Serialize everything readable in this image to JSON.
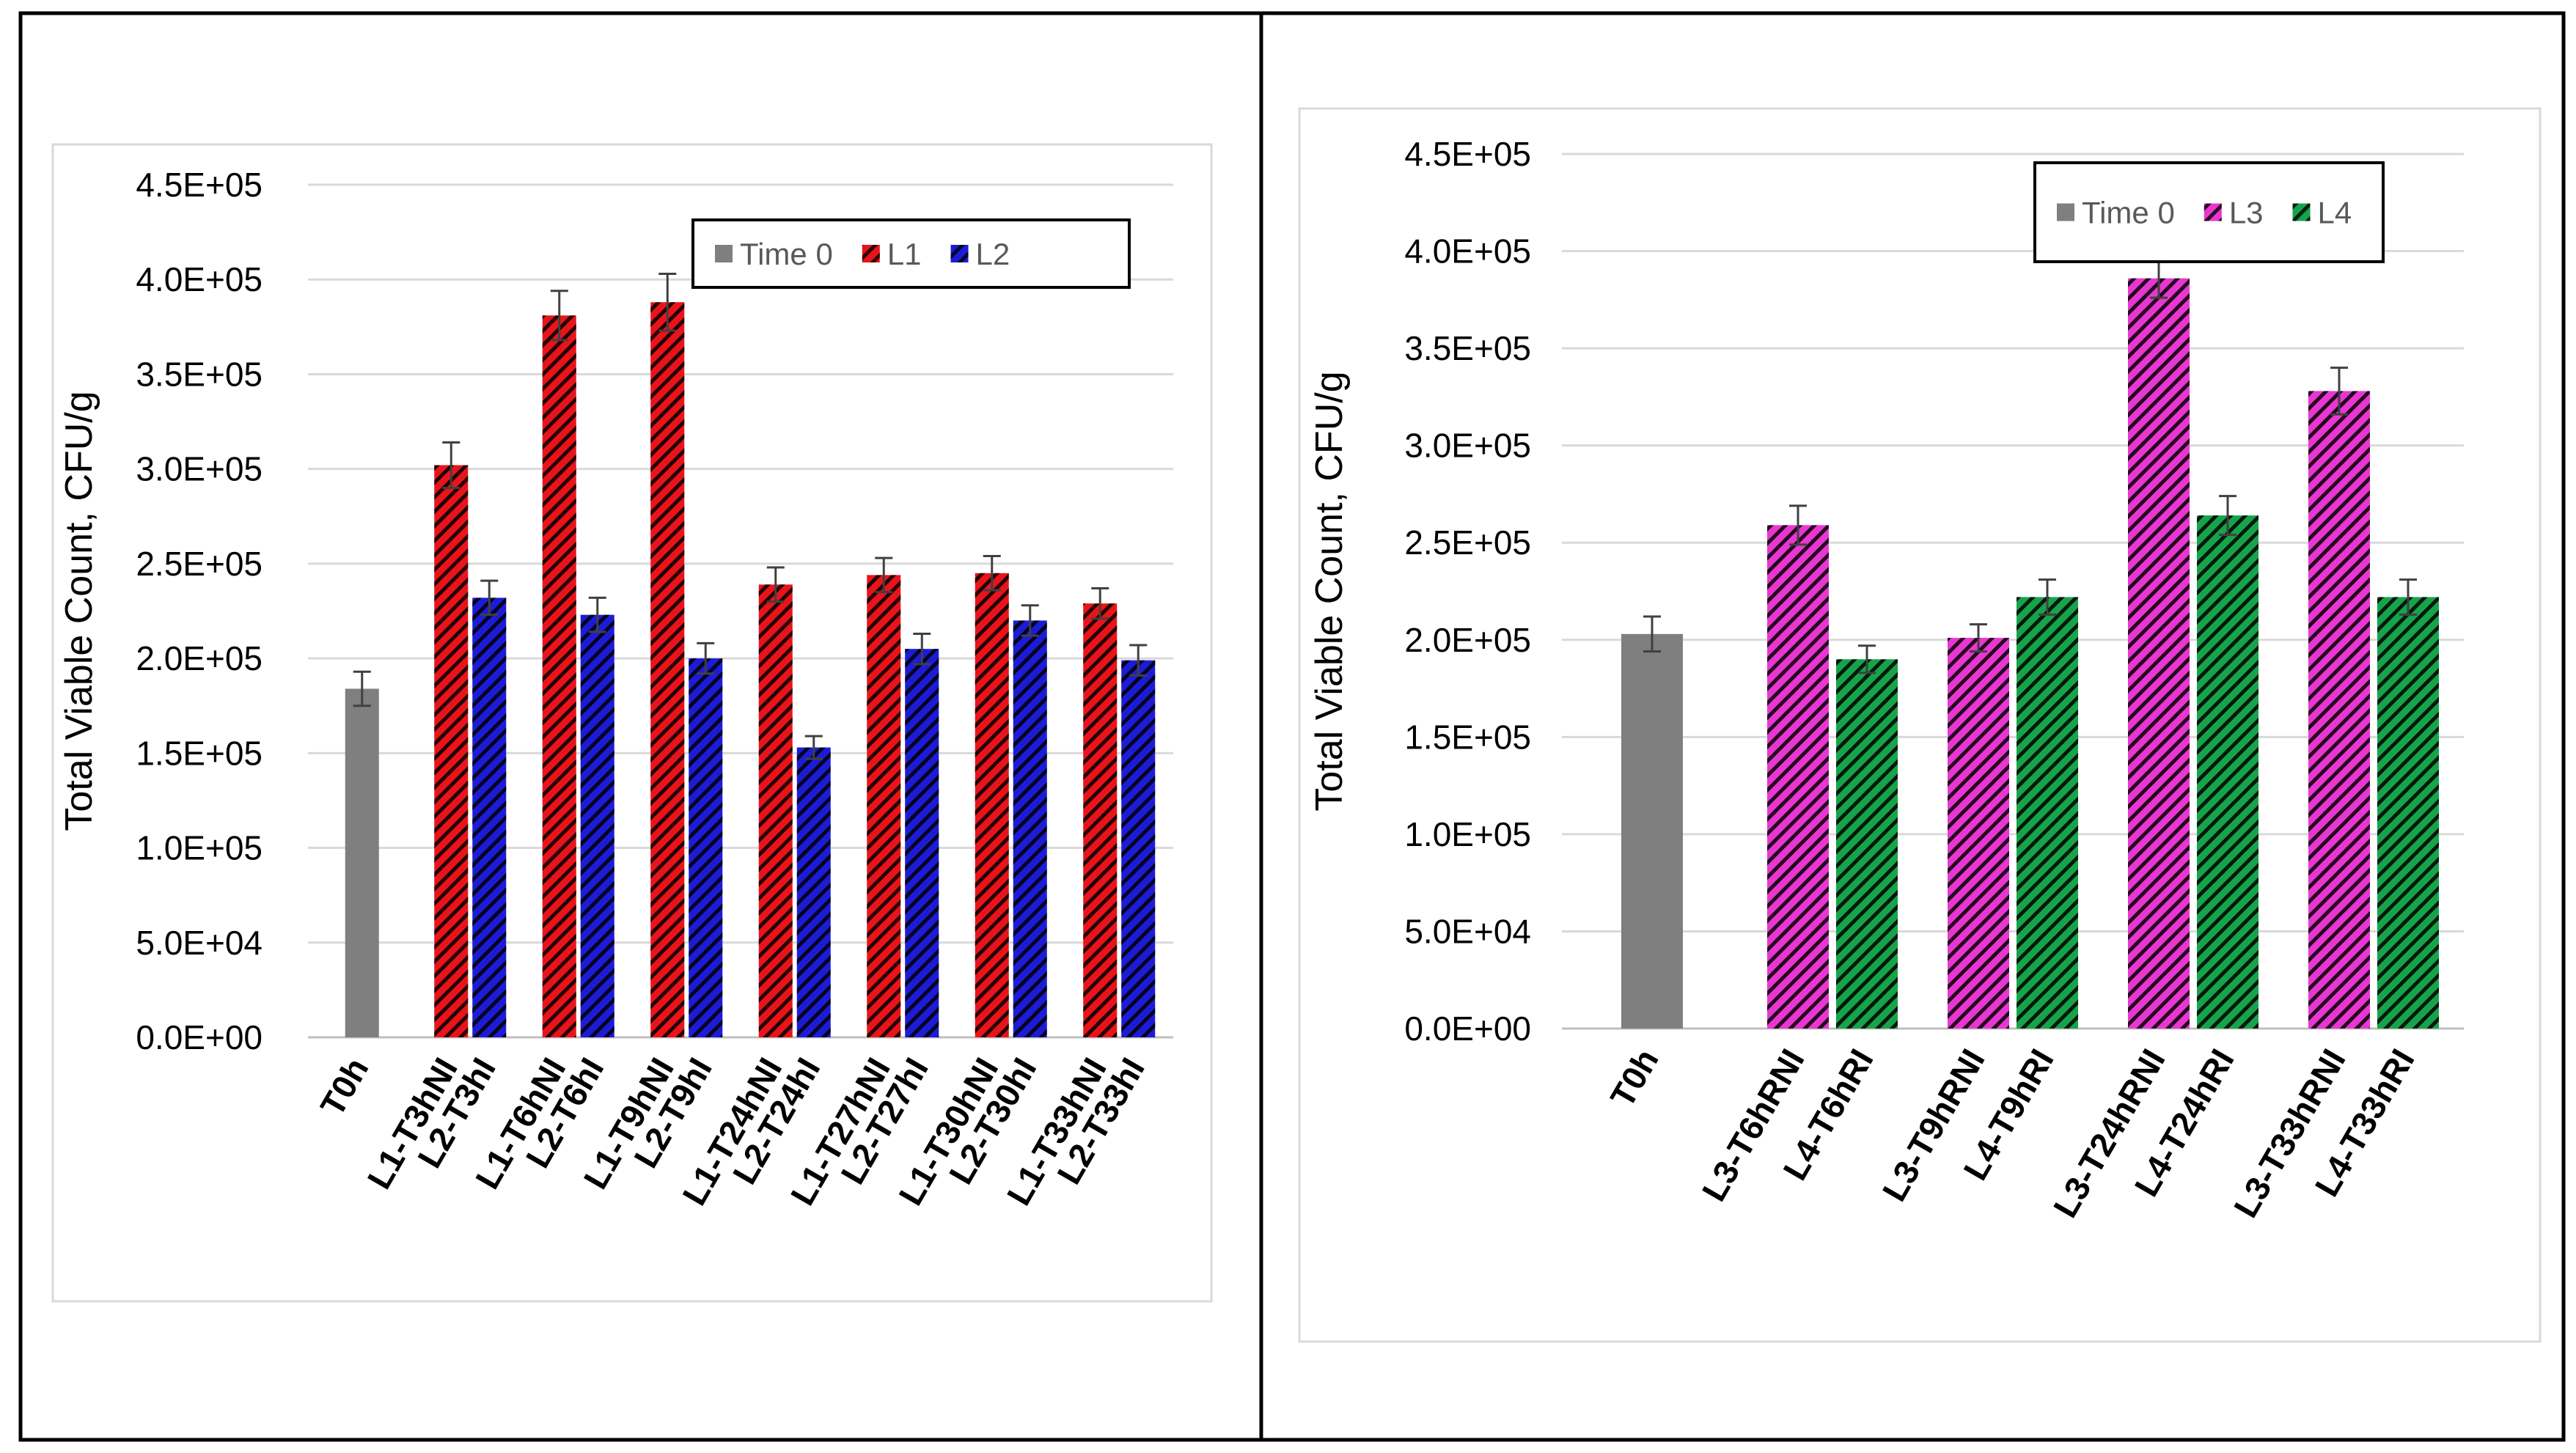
{
  "chart_data": [
    {
      "type": "bar",
      "ylabel": "Total Viable Count, CFU/g",
      "ylim": [
        0,
        450000
      ],
      "ytick_step": 50000,
      "yticks": [
        "0.0E+00",
        "5.0E+04",
        "1.0E+05",
        "1.5E+05",
        "2.0E+05",
        "2.5E+05",
        "3.0E+05",
        "3.5E+05",
        "4.0E+05",
        "4.5E+05"
      ],
      "grid": true,
      "legend_position": "top-right",
      "groups": [
        {
          "bars": [
            {
              "label": "T0h",
              "series": "Time 0",
              "value": 184000,
              "error": 9000
            }
          ]
        },
        {
          "bars": [
            {
              "label": "L1-T3hNI",
              "series": "L1",
              "value": 302000,
              "error": 12000
            },
            {
              "label": "L2-T3hI",
              "series": "L2",
              "value": 232000,
              "error": 9000
            }
          ]
        },
        {
          "bars": [
            {
              "label": "L1-T6hNI",
              "series": "L1",
              "value": 381000,
              "error": 13000
            },
            {
              "label": "L2-T6hI",
              "series": "L2",
              "value": 223000,
              "error": 9000
            }
          ]
        },
        {
          "bars": [
            {
              "label": "L1-T9hNI",
              "series": "L1",
              "value": 388000,
              "error": 15000
            },
            {
              "label": "L2-T9hI",
              "series": "L2",
              "value": 200000,
              "error": 8000
            }
          ]
        },
        {
          "bars": [
            {
              "label": "L1-T24hNI",
              "series": "L1",
              "value": 239000,
              "error": 9000
            },
            {
              "label": "L2-T24hI",
              "series": "L2",
              "value": 153000,
              "error": 6000
            }
          ]
        },
        {
          "bars": [
            {
              "label": "L1-T27hNI",
              "series": "L1",
              "value": 244000,
              "error": 9000
            },
            {
              "label": "L2-T27hI",
              "series": "L2",
              "value": 205000,
              "error": 8000
            }
          ]
        },
        {
          "bars": [
            {
              "label": "L1-T30hNI",
              "series": "L1",
              "value": 245000,
              "error": 9000
            },
            {
              "label": "L2-T30hI",
              "series": "L2",
              "value": 220000,
              "error": 8000
            }
          ]
        },
        {
          "bars": [
            {
              "label": "L1-T33hNI",
              "series": "L1",
              "value": 229000,
              "error": 8000
            },
            {
              "label": "L2-T33hI",
              "series": "L2",
              "value": 199000,
              "error": 8000
            }
          ]
        }
      ],
      "legend": [
        {
          "name": "Time 0",
          "color": "#7f7f7f",
          "pattern": "solid"
        },
        {
          "name": "L1",
          "color": "#e8141a",
          "pattern": "hatch"
        },
        {
          "name": "L2",
          "color": "#1c1cd6",
          "pattern": "hatch"
        }
      ]
    },
    {
      "type": "bar",
      "ylabel": "Total Viable Count, CFU/g",
      "ylim": [
        0,
        450000
      ],
      "ytick_step": 50000,
      "yticks": [
        "0.0E+00",
        "5.0E+04",
        "1.0E+05",
        "1.5E+05",
        "2.0E+05",
        "2.5E+05",
        "3.0E+05",
        "3.5E+05",
        "4.0E+05",
        "4.5E+05"
      ],
      "grid": true,
      "legend_position": "top-right",
      "groups": [
        {
          "bars": [
            {
              "label": "T0h",
              "series": "Time 0",
              "value": 203000,
              "error": 9000
            }
          ]
        },
        {
          "bars": [
            {
              "label": "L3-T6hRNI",
              "series": "L3",
              "value": 259000,
              "error": 10000
            },
            {
              "label": "L4-T6hRI",
              "series": "L4",
              "value": 190000,
              "error": 7000
            }
          ]
        },
        {
          "bars": [
            {
              "label": "L3-T9hRNI",
              "series": "L3",
              "value": 201000,
              "error": 7000
            },
            {
              "label": "L4-T9hRI",
              "series": "L4",
              "value": 222000,
              "error": 9000
            }
          ]
        },
        {
          "bars": [
            {
              "label": "L3-T24hRNI",
              "series": "L3",
              "value": 386000,
              "error": 10000
            },
            {
              "label": "L4-T24hRI",
              "series": "L4",
              "value": 264000,
              "error": 10000
            }
          ]
        },
        {
          "bars": [
            {
              "label": "L3-T33hRNI",
              "series": "L3",
              "value": 328000,
              "error": 12000
            },
            {
              "label": "L4-T33hRI",
              "series": "L4",
              "value": 222000,
              "error": 9000
            }
          ]
        }
      ],
      "legend": [
        {
          "name": "Time 0",
          "color": "#7f7f7f",
          "pattern": "solid"
        },
        {
          "name": "L3",
          "color": "#e837d0",
          "pattern": "hatch"
        },
        {
          "name": "L4",
          "color": "#17a34a",
          "pattern": "hatch"
        }
      ]
    }
  ]
}
